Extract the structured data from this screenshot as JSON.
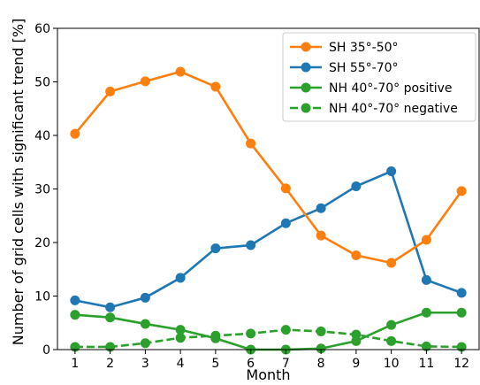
{
  "chart_data": {
    "type": "line",
    "xlabel": "Month",
    "ylabel": "Number of grid cells with significant trend [%]",
    "xlim": [
      0.5,
      12.5
    ],
    "ylim": [
      0,
      60
    ],
    "x_ticks": [
      1,
      2,
      3,
      4,
      5,
      6,
      7,
      8,
      9,
      10,
      11,
      12
    ],
    "y_ticks": [
      0,
      10,
      20,
      30,
      40,
      50,
      60
    ],
    "grid": false,
    "legend_position": "top-right",
    "x": [
      1,
      2,
      3,
      4,
      5,
      6,
      7,
      8,
      9,
      10,
      11,
      12
    ],
    "series": [
      {
        "name": "SH 35°-50°",
        "color": "#ff7f0e",
        "style": "solid",
        "values": [
          40.3,
          48.2,
          50.1,
          51.9,
          49.1,
          38.5,
          30.1,
          21.3,
          17.6,
          16.2,
          20.5,
          29.6
        ]
      },
      {
        "name": "SH 55°-70°",
        "color": "#1f77b4",
        "style": "solid",
        "values": [
          9.2,
          7.9,
          9.7,
          13.4,
          18.9,
          19.5,
          23.6,
          26.4,
          30.5,
          33.3,
          13.0,
          10.6
        ]
      },
      {
        "name": "NH 40°-70° positive",
        "color": "#2ca02c",
        "style": "solid",
        "values": [
          6.5,
          6.0,
          4.8,
          3.7,
          2.1,
          0.0,
          0.0,
          0.2,
          1.6,
          4.6,
          6.9,
          6.9
        ]
      },
      {
        "name": "NH 40°-70° negative",
        "color": "#2ca02c",
        "style": "dashed",
        "values": [
          0.5,
          0.5,
          1.2,
          2.2,
          2.6,
          3.0,
          3.7,
          3.4,
          2.8,
          1.6,
          0.6,
          0.5
        ]
      }
    ]
  }
}
